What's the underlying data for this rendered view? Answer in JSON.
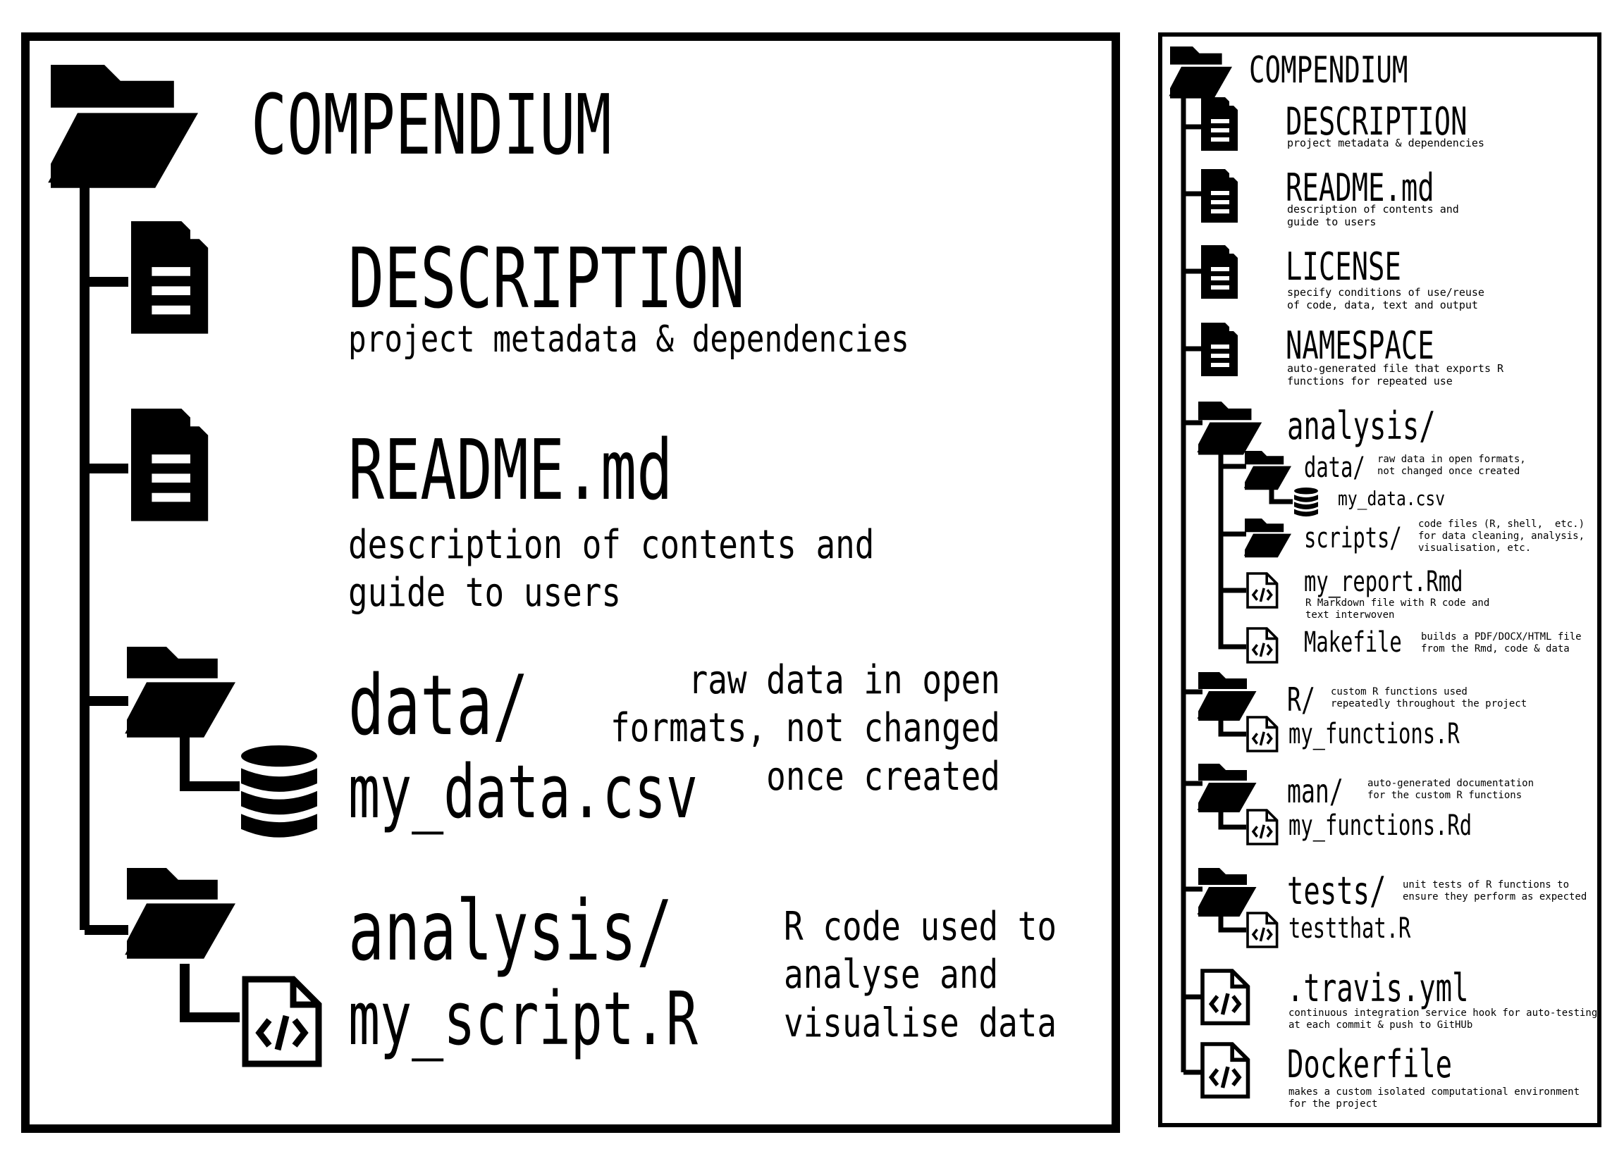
{
  "colors": {
    "ink": "#000000",
    "paper": "#ffffff"
  },
  "simple": {
    "root": {
      "label": "COMPENDIUM",
      "icon": "open-folder-icon"
    },
    "items": [
      {
        "name": "DESCRIPTION",
        "desc": "project metadata & dependencies",
        "icon": "document-icon"
      },
      {
        "name": "README.md",
        "desc": "description of contents and\nguide to users",
        "icon": "document-icon"
      },
      {
        "name": "data/",
        "child": "my_data.csv",
        "desc": "raw data in open\nformats, not changed\nonce created",
        "icon": "open-folder-icon",
        "child_icon": "database-icon"
      },
      {
        "name": "analysis/",
        "child": "my_script.R",
        "desc": "R code used to\nanalyse and\nvisualise data",
        "icon": "open-folder-icon",
        "child_icon": "code-file-icon"
      }
    ]
  },
  "full": {
    "root": {
      "label": "COMPENDIUM"
    },
    "description": {
      "name": "DESCRIPTION",
      "desc": "project metadata & dependencies"
    },
    "readme": {
      "name": "README.md",
      "desc": "description of contents and\nguide to users"
    },
    "license": {
      "name": "LICENSE",
      "desc": "specify conditions of use/reuse\nof code, data, text and output"
    },
    "namespace": {
      "name": "NAMESPACE",
      "desc": "auto-generated file that exports R\nfunctions for repeated use"
    },
    "analysis": {
      "name": "analysis/",
      "data": {
        "name": "data/",
        "desc": "raw data in open formats,\nnot changed once created",
        "child": "my_data.csv"
      },
      "scripts": {
        "name": "scripts/",
        "desc": "code files (R, shell,  etc.)\nfor data cleaning, analysis,\nvisualisation, etc."
      },
      "report": {
        "name": "my_report.Rmd",
        "desc": "R Markdown file with R code and\ntext interwoven"
      },
      "makefile": {
        "name": "Makefile",
        "desc": "builds a PDF/DOCX/HTML file\nfrom the Rmd, code & data"
      }
    },
    "r": {
      "name": "R/",
      "desc": "custom R functions used\nrepeatedly throughout the project",
      "child": "my_functions.R"
    },
    "man": {
      "name": "man/",
      "desc": "auto-generated documentation\nfor the custom R functions",
      "child": "my_functions.Rd"
    },
    "tests": {
      "name": "tests/",
      "desc": "unit tests of R functions to\nensure they perform as expected",
      "child": "testthat.R"
    },
    "travis": {
      "name": ".travis.yml",
      "desc": "continuous integration service hook for auto-testing\nat each commit & push to GitHUb"
    },
    "docker": {
      "name": "Dockerfile",
      "desc": "makes a custom isolated computational environment\nfor the project"
    }
  }
}
